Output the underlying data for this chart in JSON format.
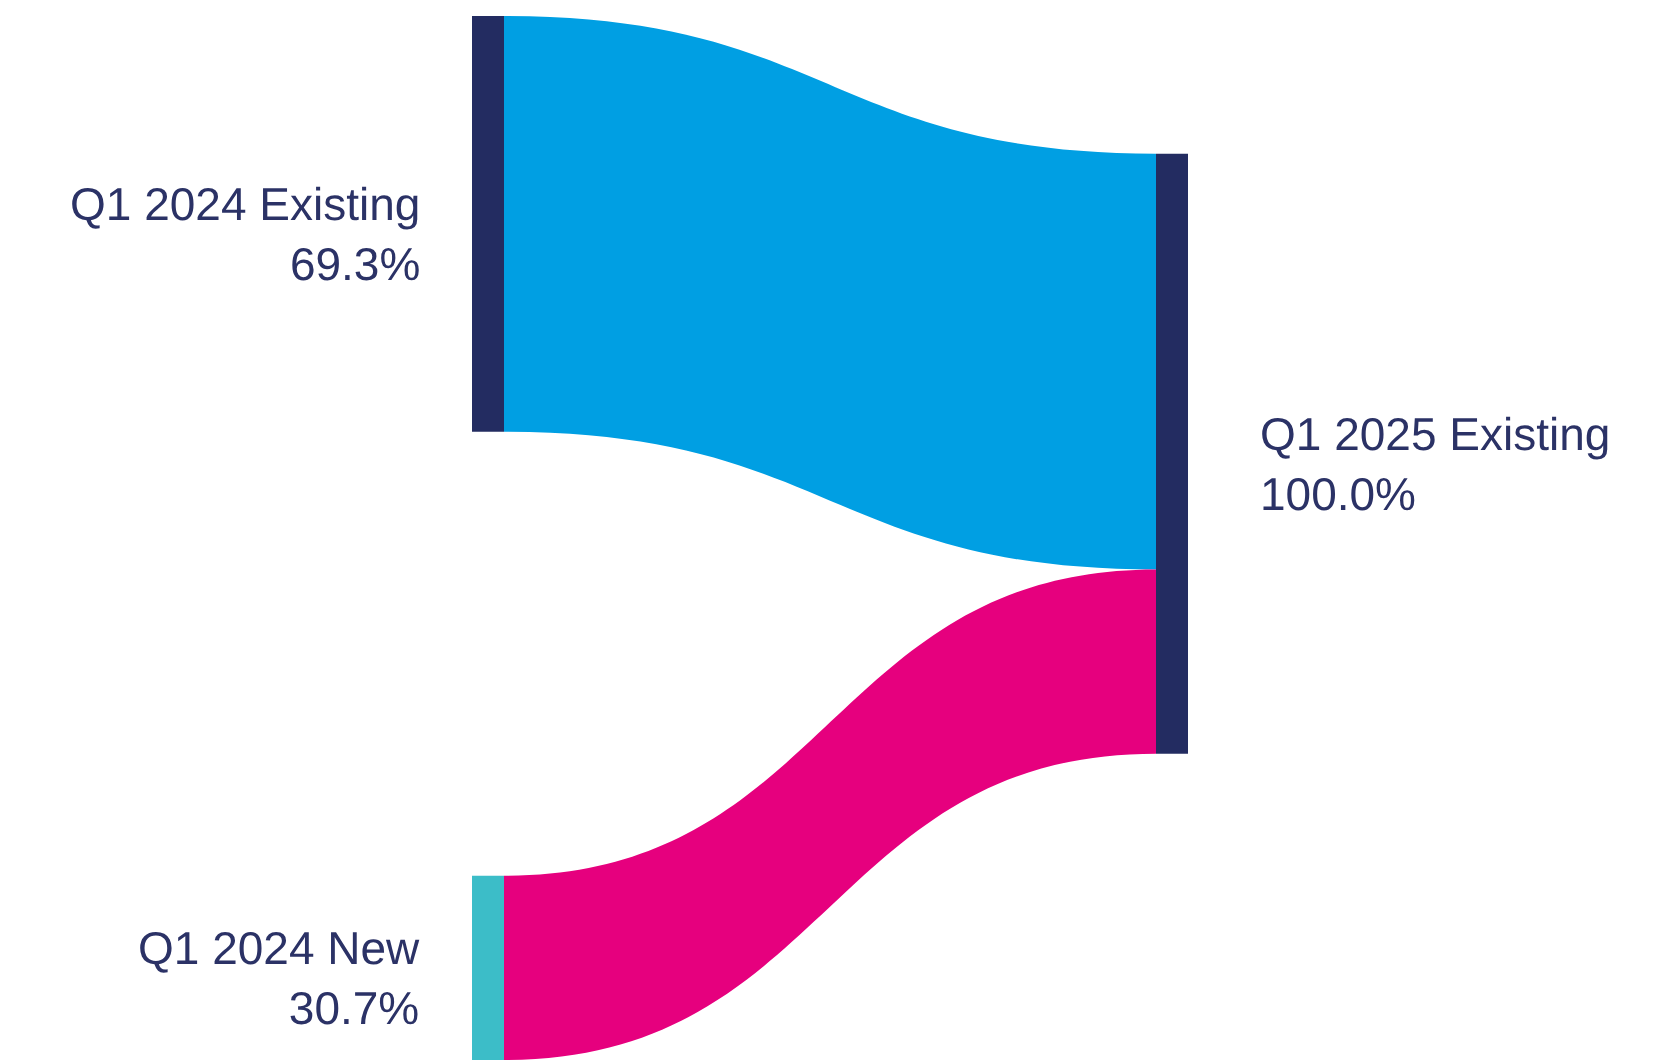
{
  "chart_data": {
    "type": "other",
    "categories": [
      "Q1 2024 Existing",
      "Q1 2024 New"
    ],
    "values": [
      69.3,
      30.7
    ],
    "value_labels": [
      "69.3%",
      "30.7%"
    ],
    "colors": [
      "#009fe3",
      "#e6007e"
    ],
    "annotations": [
      "Q1 2025 Existing",
      "100.0%"
    ]
  }
}
